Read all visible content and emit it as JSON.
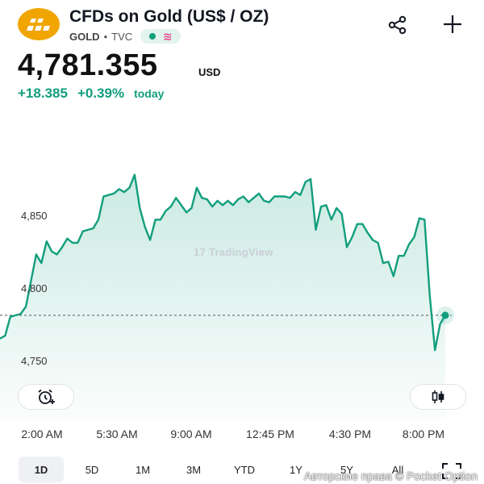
{
  "header": {
    "title": "CFDs on Gold (US$ / OZ)",
    "symbol": "GOLD",
    "exchange": "TVC",
    "logo_icon": "gold-bars-icon",
    "share_icon": "share-icon",
    "add_icon": "plus-icon",
    "status_icons": [
      "market-status-dot-icon",
      "wave-icon"
    ]
  },
  "quote": {
    "price": "4,781.355",
    "currency": "USD",
    "change": "+18.385",
    "change_percent": "+0.39%",
    "period": "today"
  },
  "chart": {
    "watermark": "TradingView",
    "y_ticks": [
      "4,850",
      "4,800",
      "4,750"
    ],
    "x_ticks": [
      "2:00 AM",
      "5:30 AM",
      "9:00 AM",
      "12:45 PM",
      "4:30 PM",
      "8:00 PM"
    ],
    "reference_price": 4786,
    "line_color": "#129e7d",
    "alert_icon": "alarm-plus-icon",
    "candles_icon": "candles-icon"
  },
  "chart_data": {
    "type": "area",
    "x_tick_labels": [
      "2:00 AM",
      "5:30 AM",
      "9:00 AM",
      "12:45 PM",
      "4:30 PM",
      "8:00 PM"
    ],
    "y_tick_labels": [
      "4,850",
      "4,800",
      "4,750"
    ],
    "ylim": [
      4742,
      4895
    ],
    "values": [
      4770,
      4772,
      4785,
      4786,
      4787,
      4792,
      4810,
      4828,
      4822,
      4837,
      4830,
      4828,
      4833,
      4839,
      4836,
      4836,
      4844,
      4845,
      4846,
      4852,
      4868,
      4869,
      4870,
      4873,
      4871,
      4874,
      4883,
      4860,
      4847,
      4838,
      4852,
      4852,
      4858,
      4861,
      4867,
      4862,
      4857,
      4860,
      4874,
      4867,
      4866,
      4861,
      4865,
      4862,
      4865,
      4862,
      4866,
      4868,
      4864,
      4867,
      4870,
      4865,
      4864,
      4868,
      4868,
      4868,
      4867,
      4871,
      4869,
      4878,
      4880,
      4845,
      4861,
      4862,
      4852,
      4860,
      4856,
      4833,
      4840,
      4849,
      4849,
      4843,
      4838,
      4836,
      4822,
      4823,
      4813,
      4827,
      4827,
      4835,
      4840,
      4853,
      4852,
      4800,
      4762,
      4780,
      4786
    ],
    "reference_line": 4786,
    "line_color": "#129e7d"
  },
  "time_ranges": {
    "items": [
      "1D",
      "5D",
      "1M",
      "3M",
      "YTD",
      "1Y",
      "5Y",
      "All"
    ],
    "selected": "1D",
    "expand_icon": "fullscreen-icon"
  },
  "overlay": {
    "copyright": "Авторские права © Pocket Option"
  }
}
